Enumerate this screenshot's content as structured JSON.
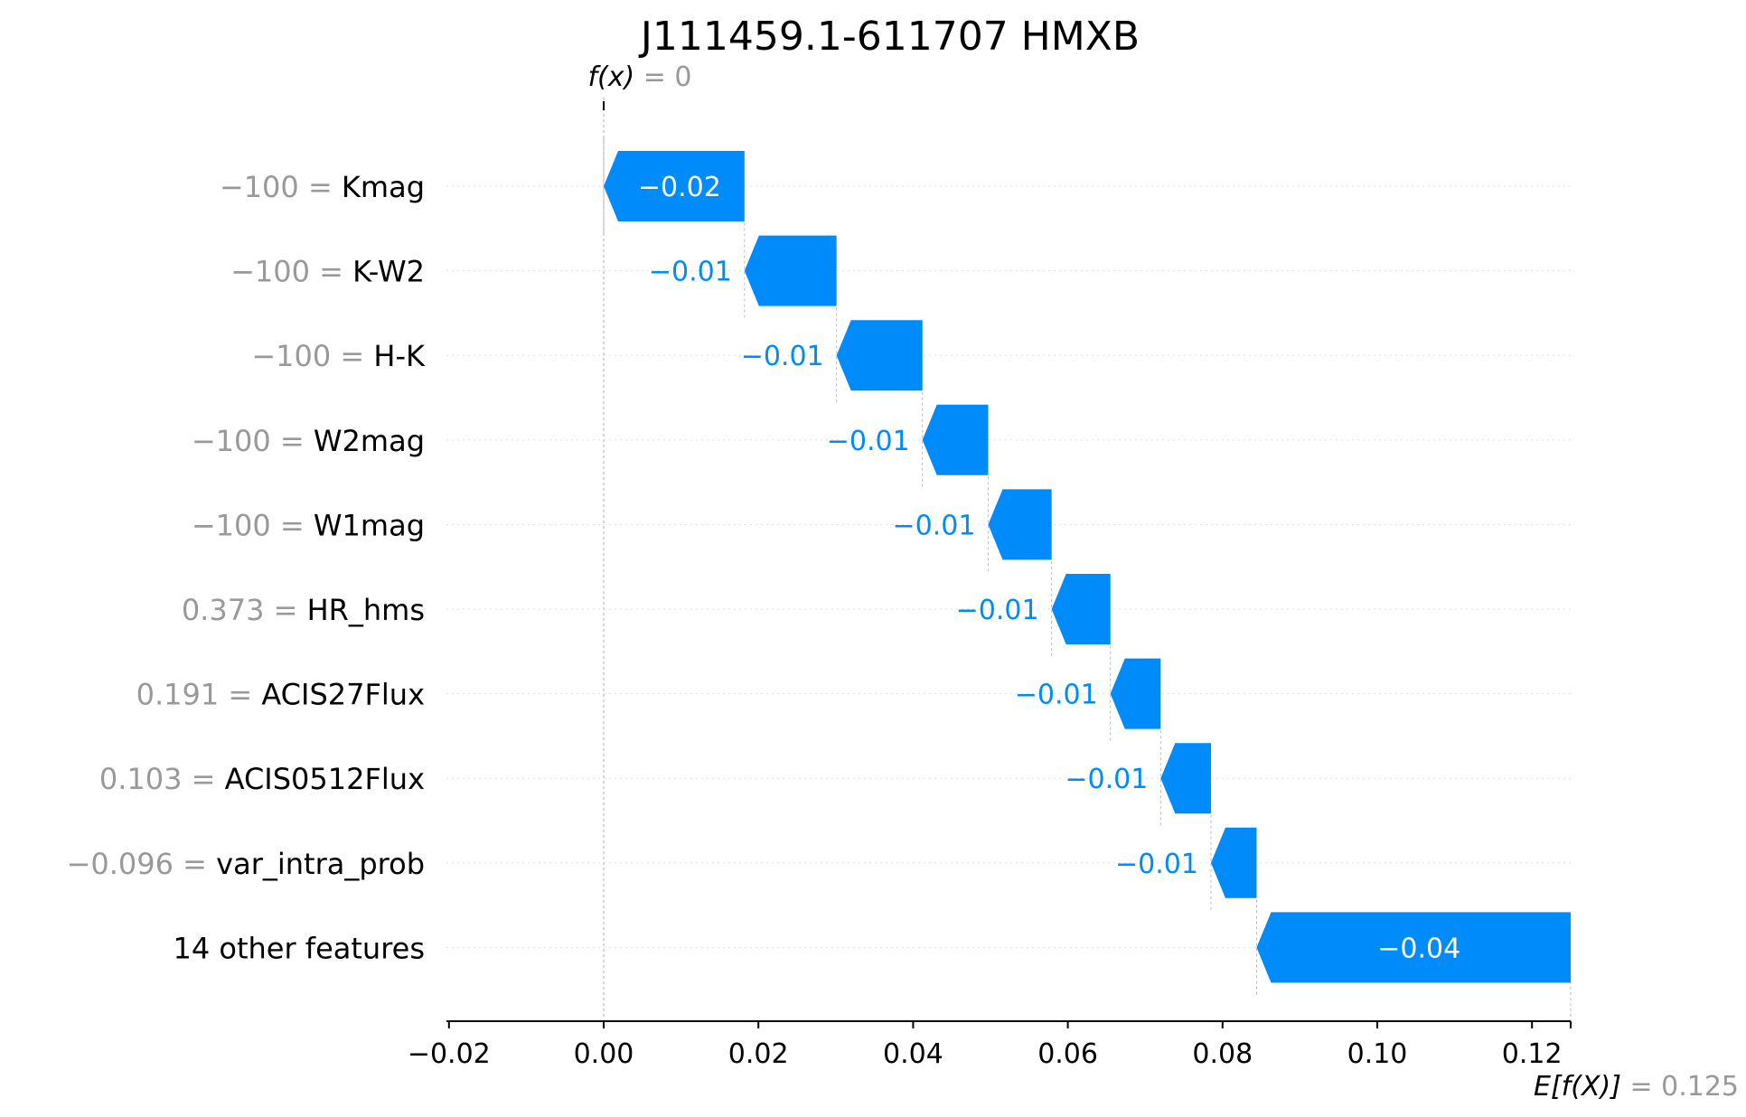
{
  "chart_data": {
    "type": "waterfall",
    "title": "J111459.1-611707 HMXB",
    "xlim": [
      -0.02,
      0.125
    ],
    "x_ticks": [
      "−0.02",
      "0.00",
      "0.02",
      "0.04",
      "0.06",
      "0.08",
      "0.10",
      "0.12"
    ],
    "x_tick_values": [
      -0.02,
      0.0,
      0.02,
      0.04,
      0.06,
      0.08,
      0.1,
      0.12
    ],
    "fx_label": "f(x)",
    "fx_value": "0",
    "fx": 0,
    "ef_label": "E[f(X)]",
    "ef_value": "0.125",
    "ef": 0.125,
    "colors": {
      "negative": "#008bfb",
      "value_text": "#999999",
      "gridline": "#cccccc"
    },
    "features": [
      {
        "value": "−100",
        "name": "Kmag",
        "start": 0.0182,
        "end": 0.0,
        "label": "−0.02"
      },
      {
        "value": "−100",
        "name": "K-W2",
        "start": 0.0301,
        "end": 0.0182,
        "label": "−0.01"
      },
      {
        "value": "−100",
        "name": "H-K",
        "start": 0.0412,
        "end": 0.0301,
        "label": "−0.01"
      },
      {
        "value": "−100",
        "name": "W2mag",
        "start": 0.0497,
        "end": 0.0412,
        "label": "−0.01"
      },
      {
        "value": "−100",
        "name": "W1mag",
        "start": 0.0579,
        "end": 0.0497,
        "label": "−0.01"
      },
      {
        "value": "0.373",
        "name": "HR_hms",
        "start": 0.0655,
        "end": 0.0579,
        "label": "−0.01"
      },
      {
        "value": "0.191",
        "name": "ACIS27Flux",
        "start": 0.072,
        "end": 0.0655,
        "label": "−0.01"
      },
      {
        "value": "0.103",
        "name": "ACIS0512Flux",
        "start": 0.0785,
        "end": 0.072,
        "label": "−0.01"
      },
      {
        "value": "−0.096",
        "name": "var_intra_prob",
        "start": 0.0844,
        "end": 0.0785,
        "label": "−0.01"
      },
      {
        "value": "",
        "name": "14 other features",
        "start": 0.125,
        "end": 0.0844,
        "label": "−0.04"
      }
    ]
  }
}
